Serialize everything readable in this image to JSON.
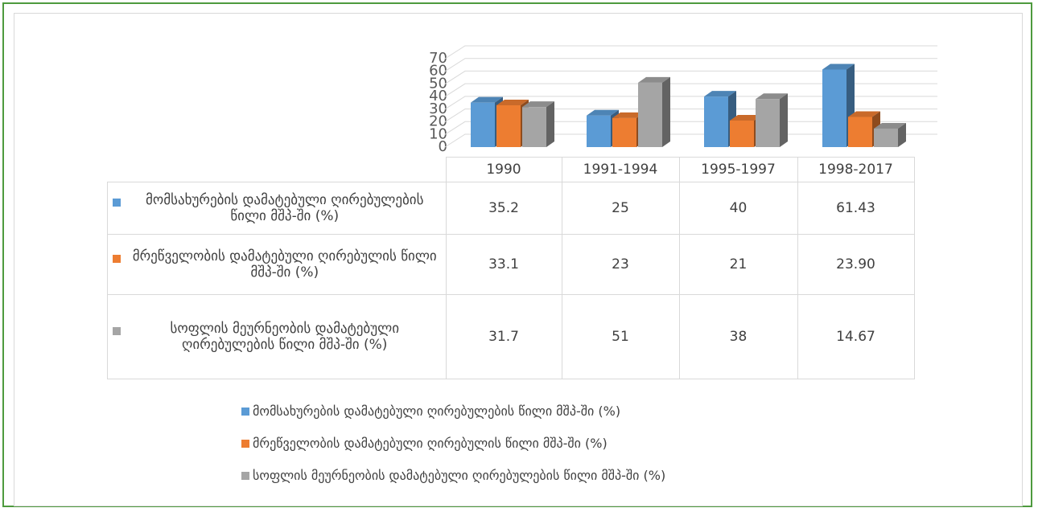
{
  "chart_data": {
    "type": "bar3d",
    "categories": [
      "1990",
      "1991-1994",
      "1995-1997",
      "1998-2017"
    ],
    "series": [
      {
        "name": "მომსახურების დამატებული ღირებულების წილი მშპ-ში (%)",
        "color": "#5b9bd5",
        "values": [
          35.2,
          25,
          40,
          61.43
        ]
      },
      {
        "name": "მრეწველობის დამატებული ღირებულის წილი მშპ-ში (%)",
        "color": "#ed7d31",
        "values": [
          33.1,
          23,
          21,
          23.9
        ],
        "value_labels": [
          "33.1",
          "23",
          "21",
          "23.90"
        ]
      },
      {
        "name": "სოფლის მეურნეობის დამატებული ღირებულების წილი მშპ-ში (%)",
        "color": "#a5a5a5",
        "values": [
          31.7,
          51,
          38,
          14.67
        ]
      }
    ],
    "ylim": [
      0,
      70
    ],
    "yticks": [
      0,
      10,
      20,
      30,
      40,
      50,
      60,
      70
    ],
    "grid": true,
    "data_table": true,
    "legend": "bottom"
  }
}
